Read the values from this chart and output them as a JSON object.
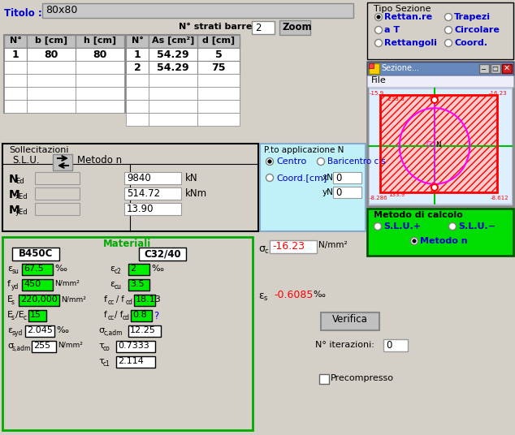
{
  "title": "80x80",
  "bg_color": "#d4d0c8",
  "table1_headers": [
    "N°",
    "b [cm]",
    "h [cm]"
  ],
  "table1_rows": [
    [
      "1",
      "80",
      "80"
    ]
  ],
  "table2_headers": [
    "N°",
    "As [cm²]",
    "d [cm]"
  ],
  "table2_rows": [
    [
      "1",
      "54.29",
      "5"
    ],
    [
      "2",
      "54.29",
      "75"
    ]
  ],
  "n_strati_barre": "2",
  "ned_val": "9840",
  "ned_unit": "kN",
  "mxed_val": "514.72",
  "mxed_unit": "kNm",
  "myed_val": "13.90",
  "xn_val": "0",
  "yn_val": "0",
  "esu_val": "67.5",
  "ec2_val": "2",
  "fyd_val": "450",
  "ecu_val": "3.5",
  "Es_val": "220,000",
  "fcd_val": "18.13",
  "EsEc_val": "15",
  "fcc_fcd_val": "0.8",
  "esyd_val": "2.045",
  "sigma_cadm_val": "12.25",
  "sigma_sadm_val": "255",
  "tau_co_val": "0.7333",
  "tau_c1_val": "2.114",
  "sigma_c_val": "-16.23",
  "epsilon_s_val": "-0.6085",
  "n_iter_val": "0",
  "green_bg": "#00ee00",
  "panel_bg": "#c0c0c0",
  "window_bg": "#d4d0c8",
  "cyan_bg": "#c0f0f8",
  "white": "#ffffff",
  "black": "#000000",
  "blue": "#0000cc",
  "red": "#ff0000",
  "green_border": "#00aa00",
  "dark_green": "#007700"
}
